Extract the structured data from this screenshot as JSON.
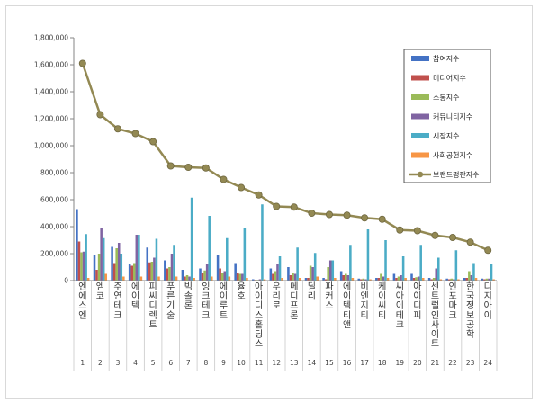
{
  "chart_data": {
    "type": "bar",
    "title": "",
    "xlabel": "",
    "ylabel": "",
    "ylim": [
      0,
      1800000
    ],
    "yticks": [
      "0",
      "200,000",
      "400,000",
      "600,000",
      "800,000",
      "1,000,000",
      "1,200,000",
      "1,400,000",
      "1,600,000",
      "1,800,000"
    ],
    "grid": false,
    "legend_position": "top-right",
    "categories": [
      "엔에스엔",
      "엠코",
      "주연테크",
      "에이텍",
      "피씨디렉트",
      "푸른기술",
      "빅솔론",
      "잉크테크",
      "에이루트",
      "율호",
      "아이디스홀딩스",
      "우리로",
      "메디프론",
      "딜리",
      "파커스",
      "에이텍티앤",
      "비엔지티",
      "케이씨티",
      "씨아이테크",
      "아이디피",
      "센트럴인사이트",
      "인포마크",
      "한국정보공학",
      "디지아이"
    ],
    "indices": [
      "1",
      "2",
      "3",
      "4",
      "5",
      "6",
      "7",
      "8",
      "9",
      "10",
      "11",
      "12",
      "13",
      "14",
      "15",
      "16",
      "17",
      "18",
      "19",
      "20",
      "21",
      "22",
      "23",
      "24"
    ],
    "series": [
      {
        "name": "참여지수",
        "color": "#4472c4",
        "values": [
          530000,
          190000,
          250000,
          120000,
          245000,
          150000,
          80000,
          90000,
          190000,
          130000,
          10000,
          90000,
          100000,
          20000,
          20000,
          70000,
          15000,
          20000,
          50000,
          50000,
          20000,
          15000,
          20000,
          15000
        ]
      },
      {
        "name": "미디어지수",
        "color": "#c0504d",
        "values": [
          290000,
          80000,
          130000,
          110000,
          135000,
          90000,
          30000,
          60000,
          90000,
          60000,
          5000,
          50000,
          40000,
          20000,
          10000,
          40000,
          10000,
          20000,
          20000,
          20000,
          10000,
          10000,
          20000,
          10000
        ]
      },
      {
        "name": "소통지수",
        "color": "#9bbb59",
        "values": [
          210000,
          200000,
          240000,
          130000,
          140000,
          100000,
          40000,
          75000,
          60000,
          50000,
          5000,
          70000,
          60000,
          110000,
          100000,
          50000,
          15000,
          50000,
          30000,
          25000,
          20000,
          15000,
          70000,
          15000
        ]
      },
      {
        "name": "커뮤니티지수",
        "color": "#8064a2",
        "values": [
          215000,
          390000,
          280000,
          340000,
          170000,
          200000,
          30000,
          120000,
          70000,
          50000,
          10000,
          120000,
          50000,
          100000,
          150000,
          40000,
          10000,
          30000,
          40000,
          30000,
          90000,
          10000,
          40000,
          15000
        ]
      },
      {
        "name": "시장지수",
        "color": "#4bacc6",
        "values": [
          345000,
          315000,
          200000,
          340000,
          310000,
          265000,
          615000,
          480000,
          315000,
          390000,
          565000,
          180000,
          245000,
          205000,
          150000,
          265000,
          380000,
          300000,
          180000,
          265000,
          170000,
          225000,
          130000,
          125000
        ]
      },
      {
        "name": "사회공헌지수",
        "color": "#f79646",
        "values": [
          20000,
          50000,
          30000,
          30000,
          30000,
          30000,
          20000,
          30000,
          30000,
          20000,
          10000,
          20000,
          20000,
          30000,
          20000,
          20000,
          10000,
          20000,
          20000,
          20000,
          10000,
          10000,
          20000,
          10000
        ]
      }
    ],
    "line": {
      "name": "브랜드평판지수",
      "color": "#938953",
      "values": [
        1610000,
        1230000,
        1125000,
        1090000,
        1030000,
        850000,
        840000,
        835000,
        750000,
        690000,
        635000,
        550000,
        545000,
        500000,
        490000,
        485000,
        465000,
        455000,
        375000,
        370000,
        335000,
        320000,
        285000,
        225000
      ]
    }
  }
}
